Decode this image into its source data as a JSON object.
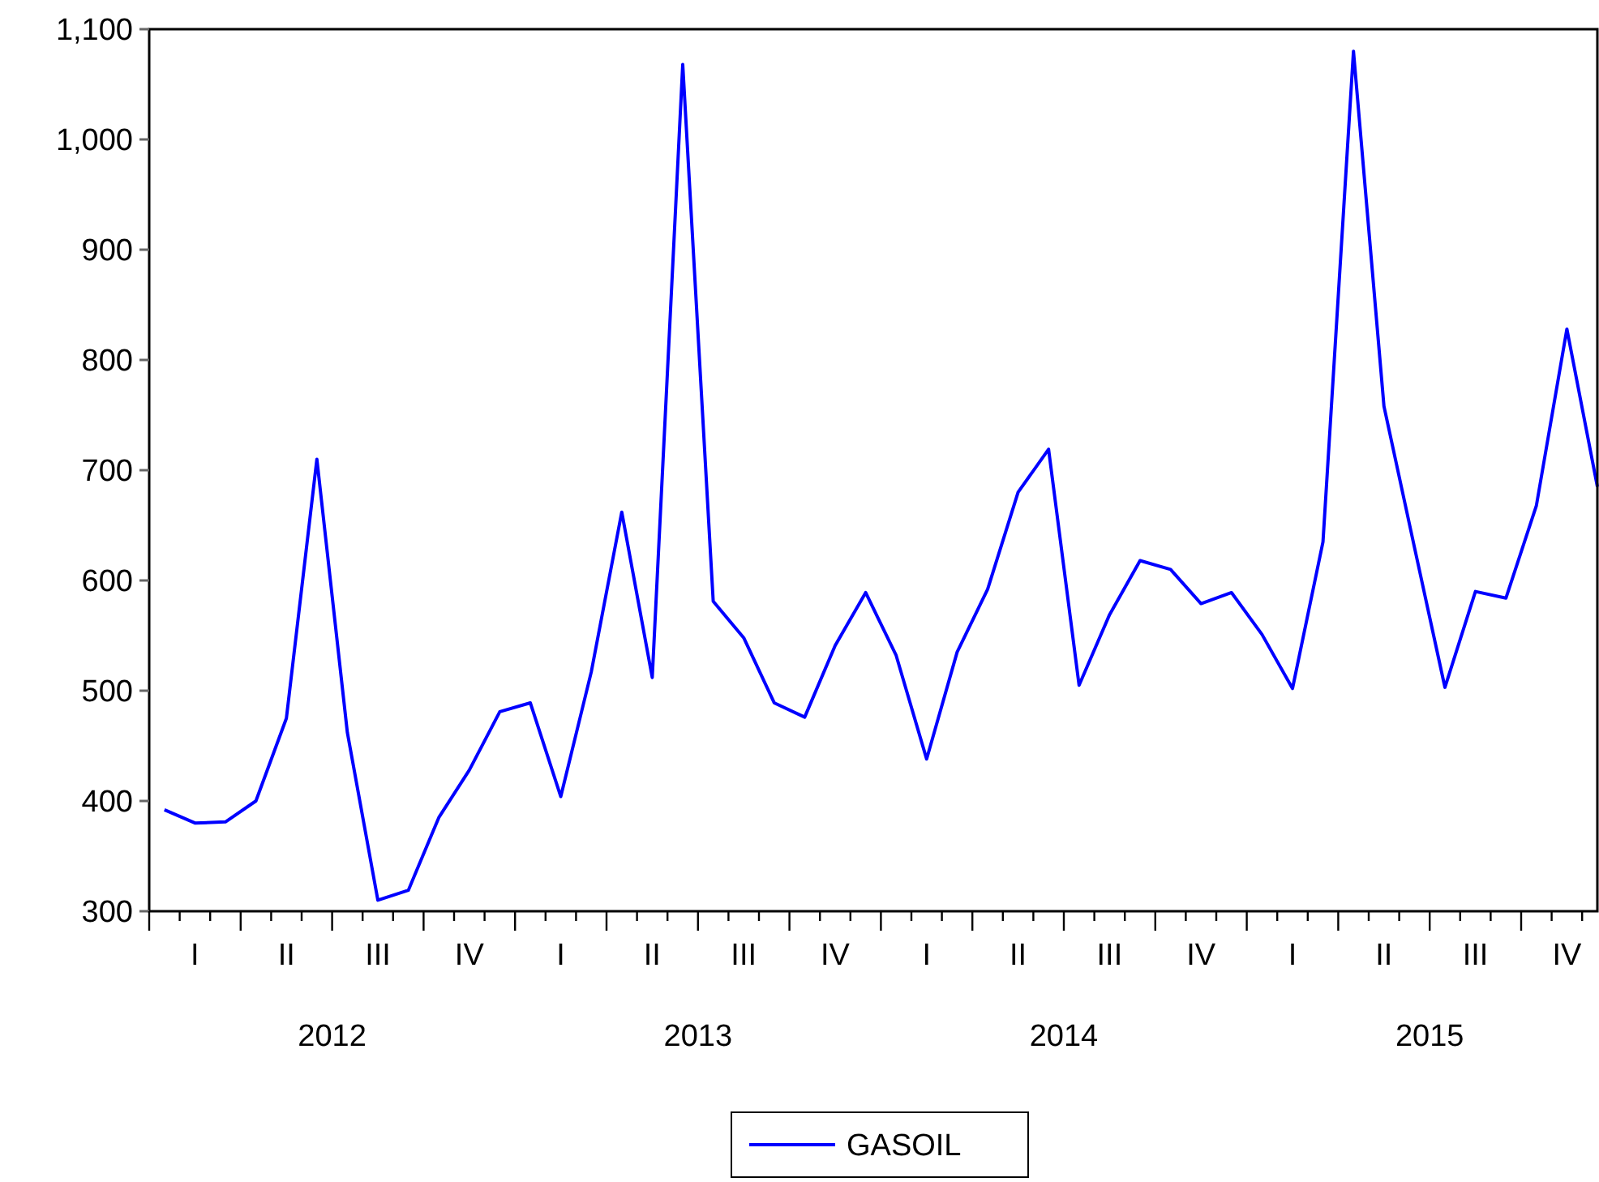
{
  "chart_data": {
    "type": "line",
    "categories": [
      null,
      "I",
      null,
      null,
      "II",
      null,
      null,
      "III",
      null,
      null,
      "IV",
      null,
      null,
      "I",
      null,
      null,
      "II",
      null,
      null,
      "III",
      null,
      null,
      "IV",
      null,
      null,
      "I",
      null,
      null,
      "II",
      null,
      null,
      "III",
      null,
      null,
      "IV",
      null,
      null,
      "I",
      null,
      null,
      "II",
      null,
      null,
      "III",
      null,
      null,
      "IV",
      null
    ],
    "series": [
      {
        "name": "GASOIL",
        "color": "#0000ff",
        "values": [
          392,
          380,
          381,
          400,
          475,
          710,
          462,
          310,
          319,
          385,
          428,
          481,
          489,
          404,
          517,
          662,
          512,
          1068,
          581,
          548,
          489,
          476,
          541,
          589,
          532,
          438,
          535,
          592,
          680,
          719,
          505,
          569,
          618,
          610,
          579,
          589,
          551,
          502,
          635,
          1080,
          758,
          630,
          503,
          590,
          584,
          668,
          828,
          685
        ]
      }
    ],
    "annotations": [
      "2012",
      "2013",
      "2014",
      "2015"
    ],
    "ylim": [
      300,
      1100
    ],
    "yticks": [
      300,
      400,
      500,
      600,
      700,
      800,
      900,
      {
        "value": 1000,
        "label": "1,000"
      },
      {
        "value": 1100,
        "label": "1,100"
      }
    ],
    "grid": false,
    "legend": "bottom",
    "line_style": "solid"
  }
}
